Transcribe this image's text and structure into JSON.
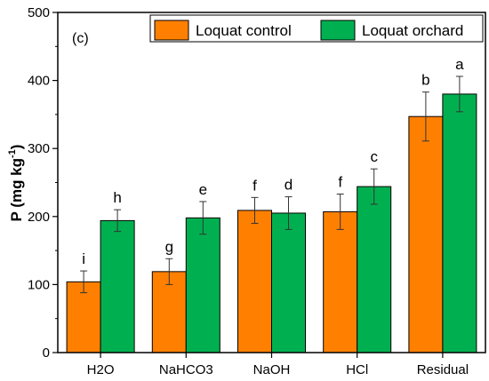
{
  "colors": {
    "loquat_control": "#ff8000",
    "loquat_orchard": "#00b050"
  },
  "chart_data": {
    "type": "bar",
    "panel_label": "(c)",
    "ylabel_main": "P (mg kg",
    "ylabel_sup": "-1",
    "ylabel_close": ")",
    "xlabel": "",
    "ylim": [
      0,
      500
    ],
    "yticks": [
      0,
      100,
      200,
      300,
      400,
      500
    ],
    "categories": [
      "H2O",
      "NaHCO3",
      "NaOH",
      "HCl",
      "Residual"
    ],
    "legend_position": "top-right",
    "series": [
      {
        "name": "Loquat control",
        "values": [
          104,
          119,
          209,
          207,
          347
        ],
        "errors": [
          16,
          19,
          19,
          26,
          36
        ],
        "letters": [
          "i",
          "g",
          "f",
          "f",
          "b"
        ]
      },
      {
        "name": "Loquat orchard",
        "values": [
          194,
          198,
          205,
          244,
          380
        ],
        "errors": [
          16,
          24,
          24,
          26,
          26
        ],
        "letters": [
          "h",
          "e",
          "d",
          "c",
          "a"
        ]
      }
    ]
  }
}
